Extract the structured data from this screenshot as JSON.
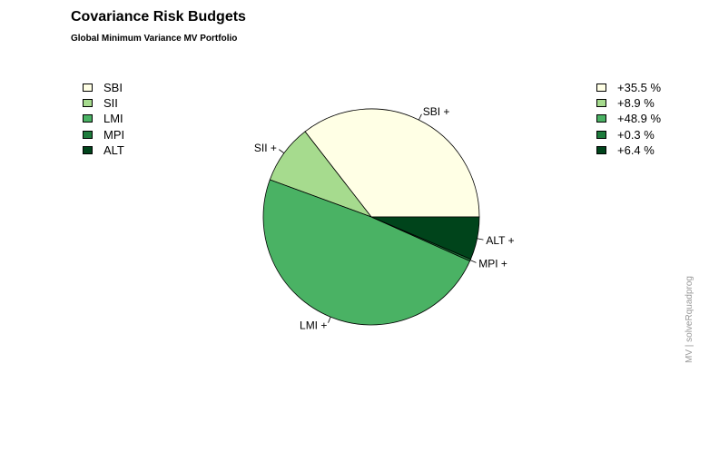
{
  "title": "Covariance Risk Budgets",
  "subtitle": "Global Minimum Variance MV Portfolio",
  "side_label": "MV | solveRquadprog",
  "chart_data": {
    "type": "pie",
    "title": "Covariance Risk Budgets",
    "subtitle": "Global Minimum Variance MV Portfolio",
    "categories": [
      "SBI",
      "SII",
      "LMI",
      "MPI",
      "ALT"
    ],
    "values": [
      35.5,
      8.9,
      48.9,
      0.3,
      6.4
    ],
    "value_labels": [
      "+35.5 %",
      "+8.9 %",
      "+48.9 %",
      "+0.3 %",
      "+6.4 %"
    ],
    "slice_labels": [
      "SBI +",
      "SII +",
      "LMI +",
      "MPI +",
      "ALT +"
    ],
    "colors": [
      "#FFFFE5",
      "#A6DB8E",
      "#4AB264",
      "#1E7B3C",
      "#00441B"
    ],
    "start_angle_deg": 0,
    "direction": "counterclockwise",
    "legend_placement": [
      "top-left",
      "top-right"
    ]
  }
}
